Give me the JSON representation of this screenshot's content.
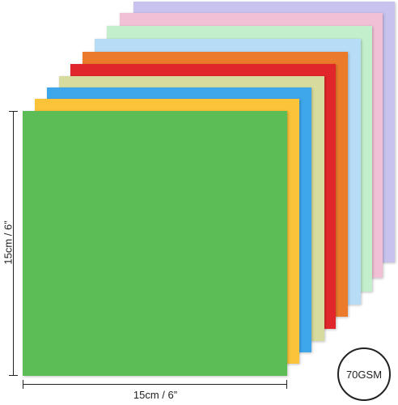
{
  "product": {
    "sheets": [
      {
        "name": "lavender",
        "color": "#c8c3ee"
      },
      {
        "name": "pink",
        "color": "#f2c0d6"
      },
      {
        "name": "mint",
        "color": "#c4efcd"
      },
      {
        "name": "light-blue",
        "color": "#b7dcf5"
      },
      {
        "name": "orange",
        "color": "#ec7a2b"
      },
      {
        "name": "red",
        "color": "#e0262b"
      },
      {
        "name": "khaki",
        "color": "#d7dc9e"
      },
      {
        "name": "blue",
        "color": "#3ea6ea"
      },
      {
        "name": "yellow",
        "color": "#fbc339"
      },
      {
        "name": "green",
        "color": "#5cbd57"
      }
    ]
  },
  "dimensions": {
    "width_label": "15cm / 6”",
    "height_label": "15cm / 6”"
  },
  "badge": {
    "weight_label": "70GSM"
  }
}
